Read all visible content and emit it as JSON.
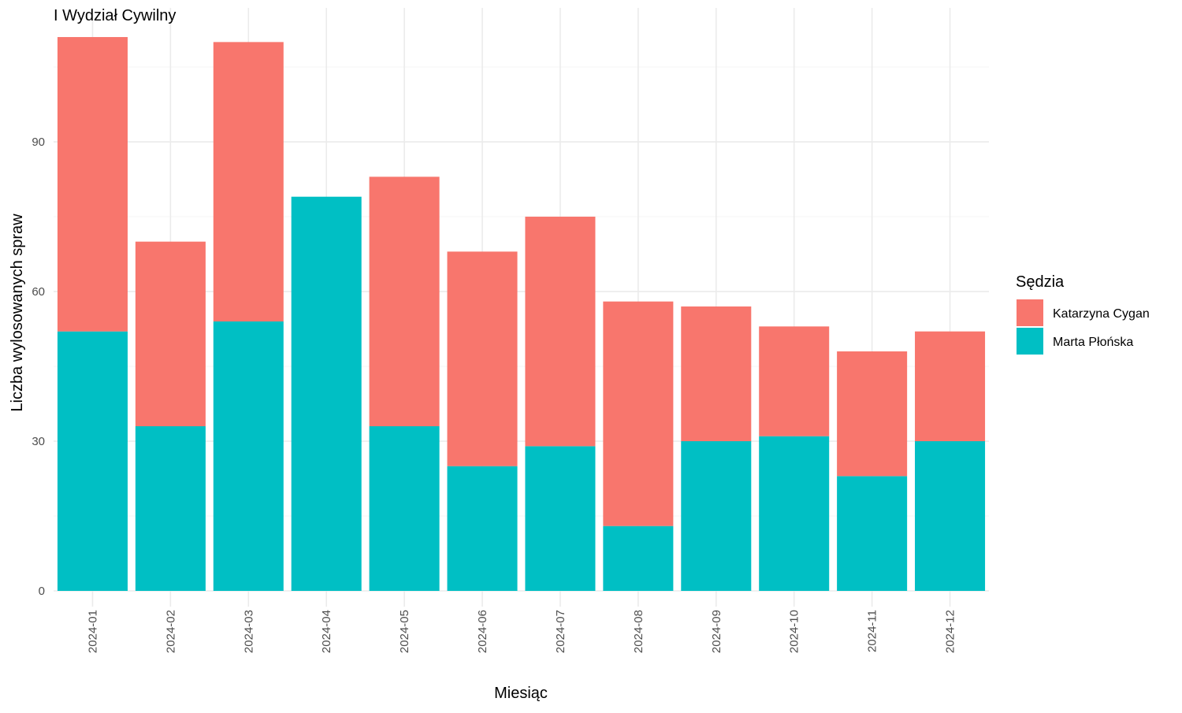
{
  "chart_data": {
    "type": "bar",
    "stacked": true,
    "title": "I Wydział Cywilny",
    "xlabel": "Miesiąc",
    "ylabel": "Liczba wylosowanych spraw",
    "categories": [
      "2024-01",
      "2024-02",
      "2024-03",
      "2024-04",
      "2024-05",
      "2024-06",
      "2024-07",
      "2024-08",
      "2024-09",
      "2024-10",
      "2024-11",
      "2024-12"
    ],
    "series": [
      {
        "name": "Marta Płońska",
        "color": "#00BFC4",
        "values": [
          52,
          33,
          54,
          79,
          33,
          25,
          29,
          13,
          30,
          31,
          23,
          30
        ]
      },
      {
        "name": "Katarzyna Cygan",
        "color": "#F8766D",
        "values": [
          59,
          37,
          56,
          0,
          50,
          43,
          46,
          45,
          27,
          22,
          25,
          22
        ]
      }
    ],
    "y_ticks": [
      0,
      30,
      60,
      90
    ],
    "ylim": [
      0,
      111
    ],
    "grid": true,
    "legend": {
      "title": "Sędzia",
      "position": "right",
      "items": [
        {
          "label": "Katarzyna Cygan",
          "color": "#F8766D"
        },
        {
          "label": "Marta Płońska",
          "color": "#00BFC4"
        }
      ]
    }
  }
}
